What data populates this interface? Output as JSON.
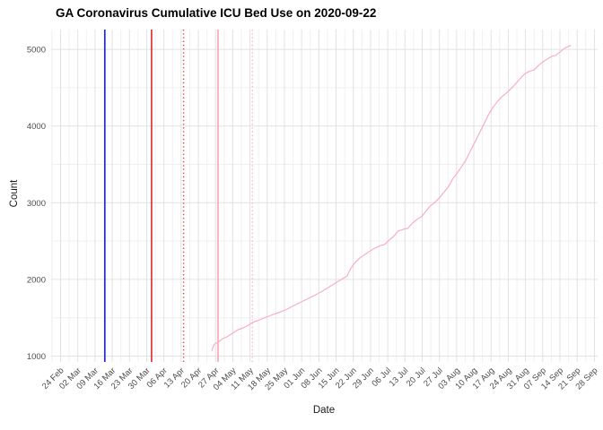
{
  "chart_data": {
    "type": "line",
    "title": "GA Coronavirus Cumulative ICU Bed Use on 2020-09-22",
    "xlabel": "Date",
    "ylabel": "Count",
    "start_date": "2020-02-24",
    "tick_interval_days": 7,
    "x_tick_labels": [
      "24 Feb",
      "02 Mar",
      "09 Mar",
      "16 Mar",
      "23 Mar",
      "30 Mar",
      "06 Apr",
      "13 Apr",
      "20 Apr",
      "27 Apr",
      "04 May",
      "11 May",
      "18 May",
      "25 May",
      "01 Jun",
      "08 Jun",
      "15 Jun",
      "22 Jun",
      "29 Jun",
      "06 Jul",
      "13 Jul",
      "20 Jul",
      "27 Jul",
      "03 Aug",
      "10 Aug",
      "17 Aug",
      "24 Aug",
      "31 Aug",
      "07 Sep",
      "14 Sep",
      "21 Sep",
      "28 Sep"
    ],
    "y_axis": {
      "ticks": [
        1000,
        2000,
        3000,
        4000,
        5000
      ],
      "minor_ticks": [
        1500,
        2500,
        3500,
        4500
      ],
      "ylim": [
        920,
        5240
      ]
    },
    "grid": {
      "major_color": "#E2E2E2",
      "minor_color": "#F0F0F0"
    },
    "axis_text_color": "#4D4D4D",
    "vlines": [
      {
        "date": "2020-03-13",
        "color": "#2121C8",
        "style": "solid",
        "width": 1.6
      },
      {
        "date": "2020-04-01",
        "color": "#DE2727",
        "style": "solid",
        "width": 1.6
      },
      {
        "date": "2020-04-14",
        "color": "#E04444",
        "style": "dotted",
        "width": 1.4
      },
      {
        "date": "2020-04-28",
        "color": "#F9B4C4",
        "style": "solid",
        "width": 2.0
      },
      {
        "date": "2020-05-12",
        "color": "#F9B4C4",
        "style": "dotted",
        "width": 1.4
      }
    ],
    "series": [
      {
        "name": "cumulative_icu_beds",
        "color": "#F9AFC1",
        "points_format": [
          "days_since_start_date",
          "count"
        ],
        "points": [
          [
            61.5,
            1064
          ],
          [
            61.9,
            1110
          ],
          [
            62.6,
            1158
          ],
          [
            64.1,
            1181
          ],
          [
            65.9,
            1228
          ],
          [
            67.7,
            1251
          ],
          [
            69.9,
            1298
          ],
          [
            72.1,
            1345
          ],
          [
            74.3,
            1368
          ],
          [
            76.4,
            1403
          ],
          [
            77.9,
            1438
          ],
          [
            80.1,
            1462
          ],
          [
            82.6,
            1497
          ],
          [
            85.5,
            1532
          ],
          [
            88.5,
            1567
          ],
          [
            91.4,
            1602
          ],
          [
            94.3,
            1649
          ],
          [
            97.2,
            1696
          ],
          [
            100.1,
            1742
          ],
          [
            103,
            1789
          ],
          [
            105.9,
            1836
          ],
          [
            108.8,
            1894
          ],
          [
            111.8,
            1953
          ],
          [
            114.7,
            2011
          ],
          [
            116.5,
            2046
          ],
          [
            117.9,
            2140
          ],
          [
            119.8,
            2222
          ],
          [
            121.6,
            2280
          ],
          [
            123.8,
            2327
          ],
          [
            126,
            2374
          ],
          [
            127.8,
            2409
          ],
          [
            130.3,
            2444
          ],
          [
            131.8,
            2456
          ],
          [
            133.6,
            2514
          ],
          [
            135.4,
            2561
          ],
          [
            137.2,
            2631
          ],
          [
            139.4,
            2654
          ],
          [
            141.2,
            2666
          ],
          [
            143.1,
            2736
          ],
          [
            144.9,
            2783
          ],
          [
            146.7,
            2818
          ],
          [
            148.5,
            2888
          ],
          [
            150.3,
            2958
          ],
          [
            152.2,
            3005
          ],
          [
            154,
            3064
          ],
          [
            155.8,
            3134
          ],
          [
            157.6,
            3204
          ],
          [
            159.4,
            3309
          ],
          [
            161.3,
            3391
          ],
          [
            163.1,
            3473
          ],
          [
            164.9,
            3566
          ],
          [
            166.7,
            3683
          ],
          [
            168.6,
            3800
          ],
          [
            170.4,
            3917
          ],
          [
            172.2,
            4034
          ],
          [
            174,
            4151
          ],
          [
            175.8,
            4244
          ],
          [
            177.7,
            4326
          ],
          [
            179.5,
            4385
          ],
          [
            181.3,
            4431
          ],
          [
            183.1,
            4490
          ],
          [
            184.9,
            4548
          ],
          [
            186.8,
            4618
          ],
          [
            188.6,
            4677
          ],
          [
            190.4,
            4712
          ],
          [
            192.6,
            4735
          ],
          [
            194.4,
            4794
          ],
          [
            196.2,
            4840
          ],
          [
            198,
            4876
          ],
          [
            199.9,
            4911
          ],
          [
            201.3,
            4922
          ],
          [
            203.1,
            4969
          ],
          [
            205,
            5016
          ],
          [
            206.4,
            5039
          ],
          [
            207.5,
            5051
          ]
        ]
      }
    ],
    "legend": "none",
    "background": "#FFFFFF"
  }
}
